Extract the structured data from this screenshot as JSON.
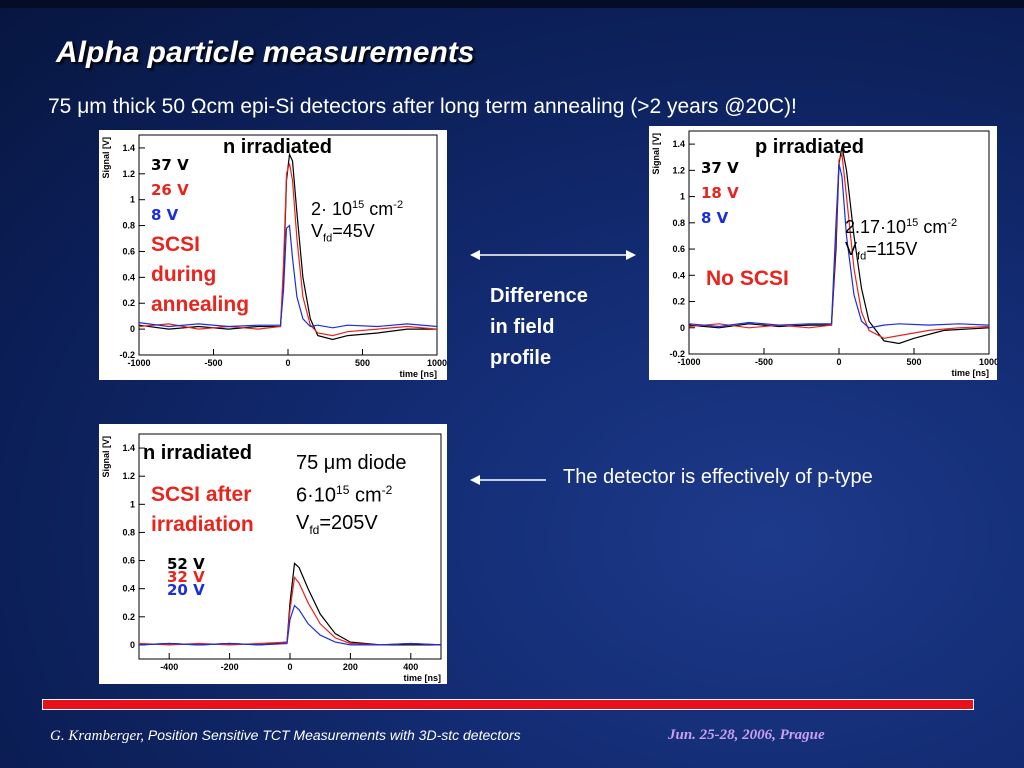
{
  "slide": {
    "title": "Alpha particle measurements",
    "subtitle": "75 μm thick 50 Ωcm epi-Si detectors  after long term annealing (>2 years @20C)!"
  },
  "middle": {
    "difference_lines": [
      "Difference",
      "in field",
      "profile"
    ],
    "ptype_note": "The detector is effectively of p-type"
  },
  "footer": {
    "author": "G. Kramberger,",
    "talk": "Position Sensitive TCT Measurements with 3D-stc detectors",
    "date_place": "Jun.  25-28, 2006, Prague"
  },
  "chart_data": [
    {
      "type": "line",
      "panel_title": "n irradiated",
      "xlabel": "time [ns]",
      "ylabel": "Signal [V]",
      "xlim": [
        -1000,
        1000
      ],
      "ylim": [
        -0.2,
        1.5
      ],
      "xticks": [
        -1000,
        -500,
        0,
        500,
        1000
      ],
      "xtick_labels": [
        "-1000",
        "-500",
        "0",
        "500",
        "1000"
      ],
      "yticks": [
        -0.2,
        0,
        0.2,
        0.4,
        0.6,
        0.8,
        1,
        1.2,
        1.4
      ],
      "ytick_labels": [
        "-0.2",
        "0",
        "0.2",
        "0.4",
        "0.6",
        "0.8",
        "1",
        "1.2",
        "1.4"
      ],
      "legend": [
        "37 V",
        "26 V",
        "8 V"
      ],
      "annotation_lines": [
        "SCSI",
        "during",
        "annealing"
      ],
      "fluence": "2· 10",
      "fluence_exp": "15",
      "fluence_unit": "cm",
      "fluence_unit_exp": "-2",
      "vfd_label": "V",
      "vfd_sub": "fd",
      "vfd_value": "=45V",
      "series": [
        {
          "name": "37 V",
          "color": "#000000",
          "values": [
            [
              -1000,
              0.03
            ],
            [
              -800,
              0.0
            ],
            [
              -600,
              0.02
            ],
            [
              -400,
              0.0
            ],
            [
              -200,
              0.02
            ],
            [
              -50,
              0.02
            ],
            [
              -30,
              0.4
            ],
            [
              -10,
              1.15
            ],
            [
              10,
              1.35
            ],
            [
              30,
              1.3
            ],
            [
              60,
              0.9
            ],
            [
              100,
              0.4
            ],
            [
              150,
              0.08
            ],
            [
              200,
              -0.05
            ],
            [
              300,
              -0.08
            ],
            [
              400,
              -0.05
            ],
            [
              600,
              -0.03
            ],
            [
              800,
              0.0
            ],
            [
              1000,
              0.0
            ]
          ]
        },
        {
          "name": "26 V",
          "color": "#e8241c",
          "values": [
            [
              -1000,
              0.02
            ],
            [
              -800,
              0.04
            ],
            [
              -600,
              0.0
            ],
            [
              -400,
              0.02
            ],
            [
              -200,
              0.0
            ],
            [
              -50,
              0.02
            ],
            [
              -30,
              0.5
            ],
            [
              -10,
              1.2
            ],
            [
              10,
              1.28
            ],
            [
              30,
              1.15
            ],
            [
              60,
              0.7
            ],
            [
              100,
              0.25
            ],
            [
              150,
              0.03
            ],
            [
              200,
              -0.03
            ],
            [
              300,
              -0.05
            ],
            [
              400,
              -0.02
            ],
            [
              600,
              0.0
            ],
            [
              800,
              0.02
            ],
            [
              1000,
              0.0
            ]
          ]
        },
        {
          "name": "8 V",
          "color": "#1a2ee0",
          "values": [
            [
              -1000,
              0.05
            ],
            [
              -800,
              0.02
            ],
            [
              -600,
              0.04
            ],
            [
              -400,
              0.02
            ],
            [
              -200,
              0.03
            ],
            [
              -50,
              0.03
            ],
            [
              -30,
              0.3
            ],
            [
              -10,
              0.78
            ],
            [
              10,
              0.8
            ],
            [
              30,
              0.55
            ],
            [
              60,
              0.25
            ],
            [
              100,
              0.08
            ],
            [
              150,
              0.02
            ],
            [
              200,
              0.03
            ],
            [
              300,
              0.01
            ],
            [
              400,
              0.03
            ],
            [
              600,
              0.02
            ],
            [
              800,
              0.04
            ],
            [
              1000,
              0.02
            ]
          ]
        }
      ]
    },
    {
      "type": "line",
      "panel_title": "p irradiated",
      "xlabel": "time [ns]",
      "ylabel": "Signal [V]",
      "xlim": [
        -1000,
        1000
      ],
      "ylim": [
        -0.2,
        1.5
      ],
      "xticks": [
        -1000,
        -500,
        0,
        500,
        1000
      ],
      "xtick_labels": [
        "-1000",
        "-500",
        "0",
        "500",
        "1000"
      ],
      "yticks": [
        -0.2,
        0,
        0.2,
        0.4,
        0.6,
        0.8,
        1,
        1.2,
        1.4
      ],
      "ytick_labels": [
        "-0.2",
        "0",
        "0.2",
        "0.4",
        "0.6",
        "0.8",
        "1",
        "1.2",
        "1.4"
      ],
      "legend": [
        "37 V",
        "18 V",
        "8 V"
      ],
      "annotation_lines": [
        "No SCSI"
      ],
      "fluence": "2.17·10",
      "fluence_exp": "15",
      "fluence_unit": "cm",
      "fluence_unit_exp": "-2",
      "vfd_label": "V",
      "vfd_sub": "fd",
      "vfd_value": "=115V",
      "series": [
        {
          "name": "37 V",
          "color": "#000000",
          "values": [
            [
              -1000,
              0.02
            ],
            [
              -800,
              0.0
            ],
            [
              -600,
              0.03
            ],
            [
              -400,
              0.01
            ],
            [
              -200,
              0.02
            ],
            [
              -50,
              0.02
            ],
            [
              -20,
              0.6
            ],
            [
              0,
              1.25
            ],
            [
              20,
              1.38
            ],
            [
              50,
              1.2
            ],
            [
              100,
              0.7
            ],
            [
              150,
              0.3
            ],
            [
              200,
              0.05
            ],
            [
              300,
              -0.1
            ],
            [
              400,
              -0.12
            ],
            [
              500,
              -0.08
            ],
            [
              700,
              -0.02
            ],
            [
              1000,
              0.0
            ]
          ]
        },
        {
          "name": "18 V",
          "color": "#e8241c",
          "values": [
            [
              -1000,
              0.01
            ],
            [
              -800,
              0.03
            ],
            [
              -600,
              0.0
            ],
            [
              -400,
              0.02
            ],
            [
              -200,
              0.0
            ],
            [
              -50,
              0.02
            ],
            [
              -20,
              0.7
            ],
            [
              0,
              1.28
            ],
            [
              20,
              1.32
            ],
            [
              50,
              1.0
            ],
            [
              100,
              0.45
            ],
            [
              150,
              0.12
            ],
            [
              200,
              -0.02
            ],
            [
              300,
              -0.08
            ],
            [
              400,
              -0.06
            ],
            [
              600,
              -0.02
            ],
            [
              800,
              0.0
            ],
            [
              1000,
              0.01
            ]
          ]
        },
        {
          "name": "8 V",
          "color": "#1a2ee0",
          "values": [
            [
              -1000,
              0.03
            ],
            [
              -800,
              0.01
            ],
            [
              -600,
              0.04
            ],
            [
              -400,
              0.02
            ],
            [
              -200,
              0.03
            ],
            [
              -50,
              0.03
            ],
            [
              -20,
              0.8
            ],
            [
              0,
              1.25
            ],
            [
              20,
              1.15
            ],
            [
              50,
              0.7
            ],
            [
              100,
              0.25
            ],
            [
              150,
              0.05
            ],
            [
              200,
              0.0
            ],
            [
              300,
              0.02
            ],
            [
              400,
              0.03
            ],
            [
              600,
              0.02
            ],
            [
              800,
              0.03
            ],
            [
              1000,
              0.02
            ]
          ]
        }
      ]
    },
    {
      "type": "line",
      "panel_title": "n irradiated",
      "xlabel": "time [ns]",
      "ylabel": "Signal [V]",
      "xlim": [
        -500,
        500
      ],
      "ylim": [
        -0.1,
        1.5
      ],
      "xticks": [
        -400,
        -200,
        0,
        200,
        400
      ],
      "xtick_labels": [
        "-400",
        "-200",
        "0",
        "200",
        "400"
      ],
      "yticks": [
        0,
        0.2,
        0.4,
        0.6,
        0.8,
        1,
        1.2,
        1.4
      ],
      "ytick_labels": [
        "0",
        "0.2",
        "0.4",
        "0.6",
        "0.8",
        "1",
        "1.2",
        "1.4"
      ],
      "legend": [
        "52 V",
        "32 V",
        "20 V"
      ],
      "annotation_lines": [
        "SCSI after",
        "irradiation"
      ],
      "diode": "75 μm diode",
      "fluence": "6·10",
      "fluence_exp": "15",
      "fluence_unit": "cm",
      "fluence_unit_exp": "-2",
      "vfd_label": "V",
      "vfd_sub": "fd",
      "vfd_value": "=205V",
      "series": [
        {
          "name": "52 V",
          "color": "#000000",
          "values": [
            [
              -500,
              0.0
            ],
            [
              -400,
              0.01
            ],
            [
              -300,
              0.0
            ],
            [
              -200,
              0.01
            ],
            [
              -100,
              0.0
            ],
            [
              -10,
              0.02
            ],
            [
              0,
              0.3
            ],
            [
              15,
              0.58
            ],
            [
              30,
              0.55
            ],
            [
              60,
              0.4
            ],
            [
              100,
              0.22
            ],
            [
              150,
              0.08
            ],
            [
              200,
              0.02
            ],
            [
              300,
              0.0
            ],
            [
              400,
              0.0
            ],
            [
              500,
              0.0
            ]
          ]
        },
        {
          "name": "32 V",
          "color": "#e8241c",
          "values": [
            [
              -500,
              0.01
            ],
            [
              -400,
              0.0
            ],
            [
              -300,
              0.01
            ],
            [
              -200,
              0.0
            ],
            [
              -100,
              0.01
            ],
            [
              -10,
              0.02
            ],
            [
              0,
              0.25
            ],
            [
              15,
              0.48
            ],
            [
              30,
              0.44
            ],
            [
              60,
              0.3
            ],
            [
              100,
              0.15
            ],
            [
              150,
              0.05
            ],
            [
              200,
              0.01
            ],
            [
              300,
              0.0
            ],
            [
              400,
              0.01
            ],
            [
              500,
              0.0
            ]
          ]
        },
        {
          "name": "20 V",
          "color": "#1a2ee0",
          "values": [
            [
              -500,
              0.0
            ],
            [
              -400,
              0.01
            ],
            [
              -300,
              0.0
            ],
            [
              -200,
              0.01
            ],
            [
              -100,
              0.0
            ],
            [
              -10,
              0.01
            ],
            [
              0,
              0.18
            ],
            [
              15,
              0.28
            ],
            [
              30,
              0.25
            ],
            [
              60,
              0.15
            ],
            [
              100,
              0.07
            ],
            [
              150,
              0.02
            ],
            [
              200,
              0.0
            ],
            [
              300,
              0.0
            ],
            [
              400,
              0.01
            ],
            [
              500,
              0.0
            ]
          ]
        }
      ]
    }
  ]
}
